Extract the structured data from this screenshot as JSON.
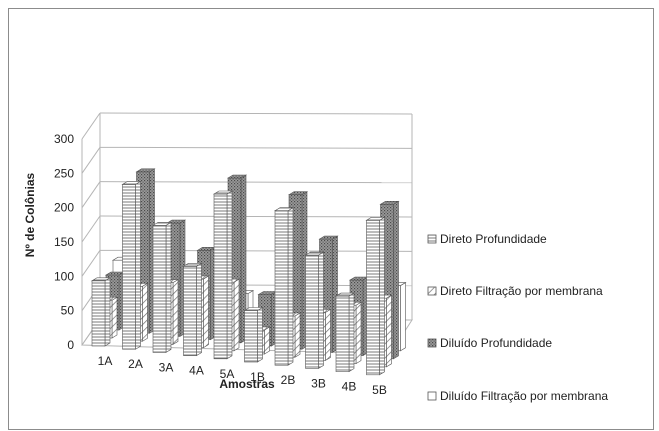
{
  "chart_data": {
    "type": "bar",
    "style": "3d-clustered-column",
    "title": "",
    "xlabel": "Amostras",
    "ylabel": "Nº de Colônias",
    "ylim": [
      0,
      300
    ],
    "yticks": [
      0,
      50,
      100,
      150,
      200,
      250,
      300
    ],
    "grid": true,
    "legend_position": "right",
    "categories": [
      "1A",
      "2A",
      "3A",
      "4A",
      "5A",
      "1B",
      "2B",
      "3B",
      "4B",
      "5B"
    ],
    "series": [
      {
        "name": "Direto Profundidade",
        "color": "#d9d9d9",
        "pattern": "horizontal-lines",
        "values": [
          95,
          240,
          185,
          130,
          240,
          75,
          225,
          165,
          110,
          225
        ]
      },
      {
        "name": "Direto Filtração por membrana",
        "color": "#f0f0f0",
        "pattern": "diagonal-lines",
        "values": [
          55,
          80,
          90,
          100,
          100,
          35,
          60,
          70,
          85,
          100
        ]
      },
      {
        "name": "Diluído Profundidade",
        "color": "#8c8c8c",
        "pattern": "dotted",
        "values": [
          80,
          235,
          165,
          130,
          240,
          75,
          225,
          165,
          110,
          225
        ]
      },
      {
        "name": "Diluído Filtração por membrana",
        "color": "#ffffff",
        "pattern": "none",
        "values": [
          90,
          20,
          30,
          30,
          60,
          20,
          25,
          30,
          60,
          95
        ]
      }
    ]
  }
}
